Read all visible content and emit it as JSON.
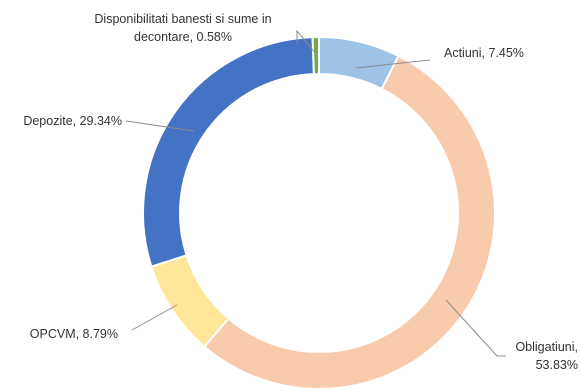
{
  "chart_data": {
    "type": "pie",
    "variant": "doughnut",
    "title": "",
    "slices": [
      {
        "name": "Actiuni",
        "value": 7.45,
        "label": "Actiuni, 7.45%",
        "color": "#9dc3e6"
      },
      {
        "name": "Obligatiuni",
        "value": 53.83,
        "label": "Obligatiuni, 53.83%",
        "color": "#f8cbad"
      },
      {
        "name": "OPCVM",
        "value": 8.79,
        "label": "OPCVM, 8.79%",
        "color": "#ffe699"
      },
      {
        "name": "Depozite",
        "value": 29.34,
        "label": "Depozite, 29.34%",
        "color": "#4472c4"
      },
      {
        "name": "Disponibilitati banesti si sume in decontare",
        "value": 0.58,
        "label": "Disponibilitati banesti si sume in decontare, 0.58%",
        "color": "#70ad47"
      }
    ],
    "label_lines": {
      "Actiuni": [
        "Actiuni, 7.45%"
      ],
      "Obligatiuni": [
        "Obligatiuni,",
        "53.83%"
      ],
      "OPCVM": [
        "OPCVM, 8.79%"
      ],
      "Depozite": [
        "Depozite, 29.34%"
      ],
      "Disponibilitati banesti si sume in decontare": [
        "Disponibilitati banesti si sume in",
        "decontare, 0.58%"
      ]
    },
    "legend": "none"
  }
}
